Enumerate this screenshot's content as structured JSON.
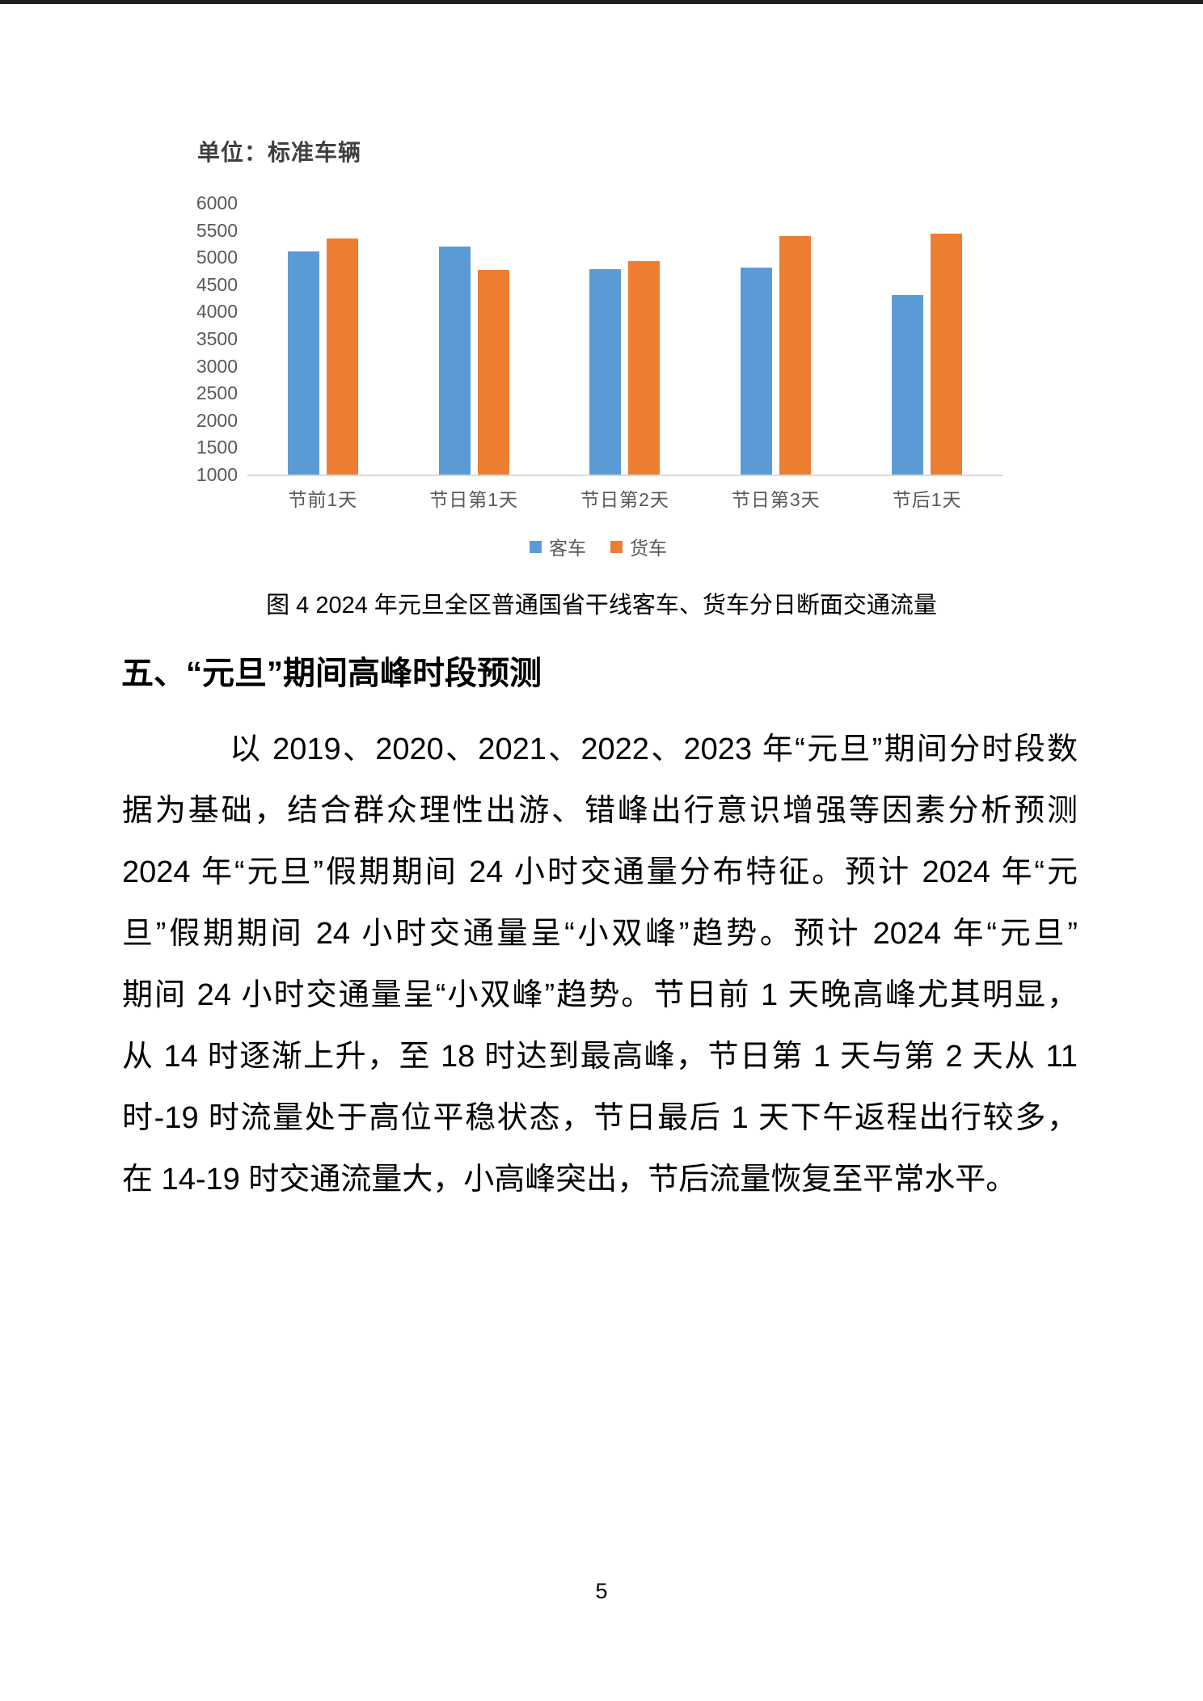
{
  "chart_data": {
    "type": "bar",
    "title": "单位：标准车辆",
    "categories": [
      "节前1天",
      "节日第1天",
      "节日第2天",
      "节日第3天",
      "节后1天"
    ],
    "series": [
      {
        "name": "客车",
        "color": "#5B9BD5",
        "values": [
          5100,
          5200,
          4780,
          4810,
          4310
        ]
      },
      {
        "name": "货车",
        "color": "#ED7D31",
        "values": [
          5350,
          4760,
          4930,
          5390,
          5440
        ]
      }
    ],
    "xlabel": "",
    "ylabel": "",
    "y_axis": {
      "min": 1000,
      "max": 6000,
      "step": 500,
      "ticks": [
        6000,
        5500,
        5000,
        4500,
        4000,
        3500,
        3000,
        2500,
        2000,
        1500,
        1000
      ]
    },
    "grid": false,
    "legend_position": "bottom"
  },
  "figure": {
    "caption": "图 4 2024 年元旦全区普通国省干线客车、货车分日断面交通流量"
  },
  "section": {
    "heading": "五、“元旦”期间高峰时段预测"
  },
  "body": {
    "lines": [
      "以 2019、2020、2021、2022、2023 年“元旦”期间分时段数",
      "据为基础，结合群众理性出游、错峰出行意识增强等因素分析预测",
      "2024 年“元旦”假期期间 24 小时交通量分布特征。预计 2024 年“元",
      "旦”假期期间 24 小时交通量呈“小双峰”趋势。预计 2024 年“元旦”",
      "期间 24 小时交通量呈“小双峰”趋势。节日前 1 天晚高峰尤其明显，",
      "从 14 时逐渐上升，至 18 时达到最高峰，节日第 1 天与第 2 天从 11",
      "时-19 时流量处于高位平稳状态，节日最后 1 天下午返程出行较多，",
      "在 14-19 时交通流量大，小高峰突出，节后流量恢复至平常水平。"
    ]
  },
  "footer": {
    "page_number": "5"
  }
}
